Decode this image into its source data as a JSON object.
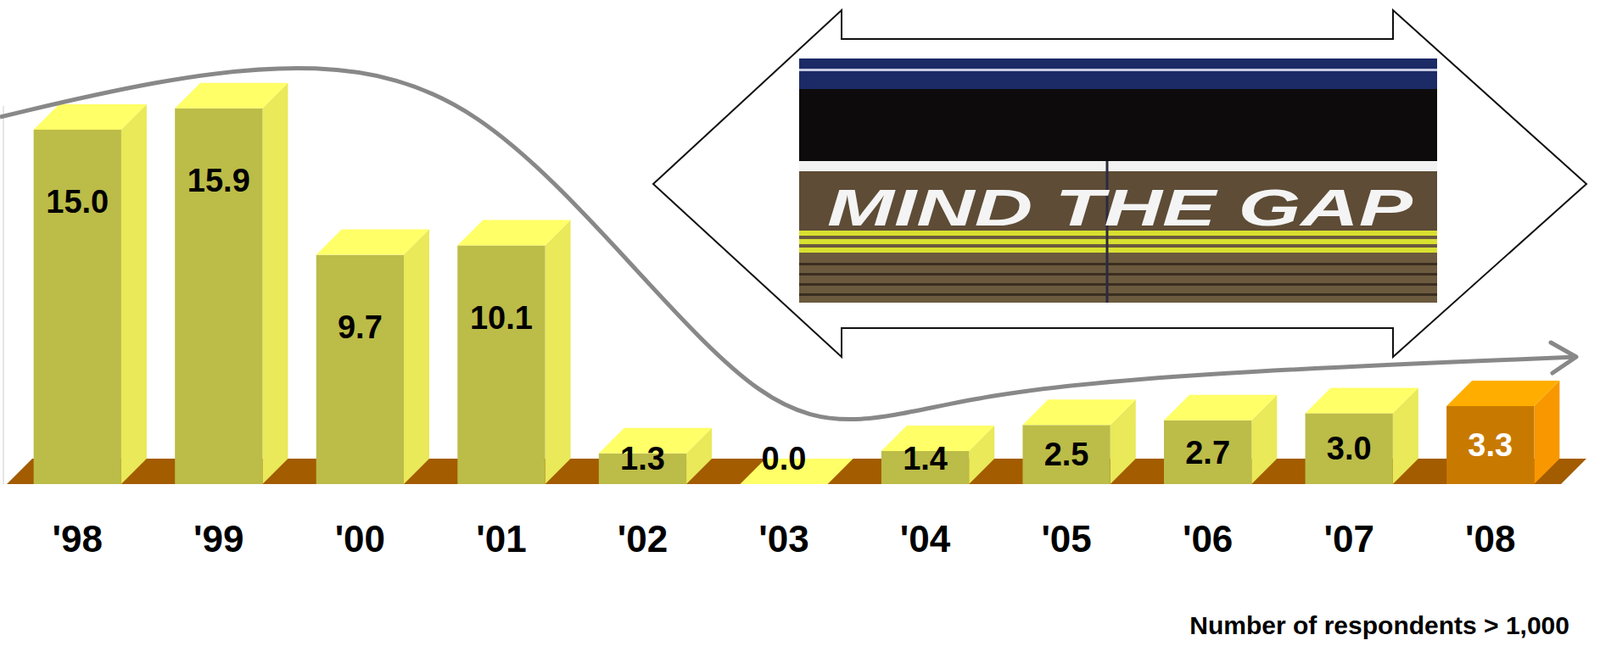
{
  "chart_data": {
    "type": "bar",
    "categories": [
      "'98",
      "'99",
      "'00",
      "'01",
      "'02",
      "'03",
      "'04",
      "'05",
      "'06",
      "'07",
      "'08"
    ],
    "values": [
      15,
      15.9,
      9.7,
      10.1,
      1.3,
      0,
      1.4,
      2.5,
      2.7,
      3,
      3.3
    ],
    "value_labels": [
      "15.0",
      "15.9",
      "9.7",
      "10.1",
      "1.3",
      "0.0",
      "1.4",
      "2.5",
      "2.7",
      "3.0",
      "3.3"
    ],
    "colors": [
      "#bcbc48",
      "#bcbc48",
      "#bcbc48",
      "#bcbc48",
      "#bcbc48",
      "#bcbc48",
      "#bcbc48",
      "#bcbc48",
      "#bcbc48",
      "#bcbc48",
      "#c87a00"
    ],
    "ylim": [
      0,
      16
    ],
    "data_labels": true,
    "tick_labels": "x",
    "annotations": [
      "MIND THE GAP",
      "Number of respondents > 1,000"
    ]
  }
}
